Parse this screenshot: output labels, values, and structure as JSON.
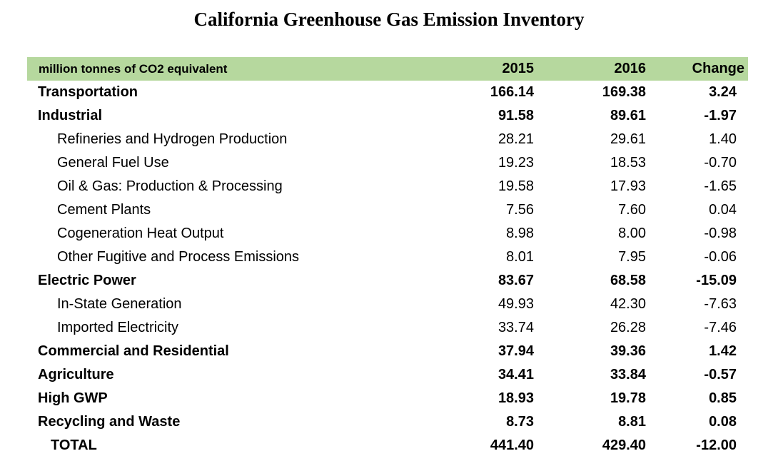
{
  "title": "California Greenhouse Gas Emission Inventory",
  "header_bg_color": "#b6d89e",
  "text_color": "#000000",
  "chart_data": {
    "type": "table",
    "title": "California Greenhouse Gas Emission Inventory",
    "unit_label": "million tonnes of CO2 equivalent",
    "columns": [
      "2015",
      "2016",
      "Change"
    ],
    "rows": [
      {
        "label": "Transportation",
        "level": "category",
        "values": [
          166.14,
          169.38,
          3.24
        ]
      },
      {
        "label": "Industrial",
        "level": "category",
        "values": [
          91.58,
          89.61,
          -1.97
        ]
      },
      {
        "label": "Refineries and Hydrogen Production",
        "level": "sub",
        "values": [
          28.21,
          29.61,
          1.4
        ]
      },
      {
        "label": "General Fuel Use",
        "level": "sub",
        "values": [
          19.23,
          18.53,
          -0.7
        ]
      },
      {
        "label": "Oil & Gas: Production & Processing",
        "level": "sub",
        "values": [
          19.58,
          17.93,
          -1.65
        ]
      },
      {
        "label": "Cement Plants",
        "level": "sub",
        "values": [
          7.56,
          7.6,
          0.04
        ]
      },
      {
        "label": "Cogeneration Heat Output",
        "level": "sub",
        "values": [
          8.98,
          8.0,
          -0.98
        ]
      },
      {
        "label": "Other Fugitive and Process Emissions",
        "level": "sub",
        "values": [
          8.01,
          7.95,
          -0.06
        ]
      },
      {
        "label": "Electric Power",
        "level": "category",
        "values": [
          83.67,
          68.58,
          -15.09
        ]
      },
      {
        "label": "In-State Generation",
        "level": "sub",
        "values": [
          49.93,
          42.3,
          -7.63
        ]
      },
      {
        "label": "Imported Electricity",
        "level": "sub",
        "values": [
          33.74,
          26.28,
          -7.46
        ]
      },
      {
        "label": "Commercial and Residential",
        "level": "category",
        "values": [
          37.94,
          39.36,
          1.42
        ]
      },
      {
        "label": "Agriculture",
        "level": "category",
        "values": [
          34.41,
          33.84,
          -0.57
        ]
      },
      {
        "label": "High GWP",
        "level": "category",
        "values": [
          18.93,
          19.78,
          0.85
        ]
      },
      {
        "label": "Recycling and Waste",
        "level": "category",
        "values": [
          8.73,
          8.81,
          0.08
        ]
      },
      {
        "label": "TOTAL",
        "level": "total",
        "values": [
          441.4,
          429.4,
          -12.0
        ]
      }
    ]
  }
}
